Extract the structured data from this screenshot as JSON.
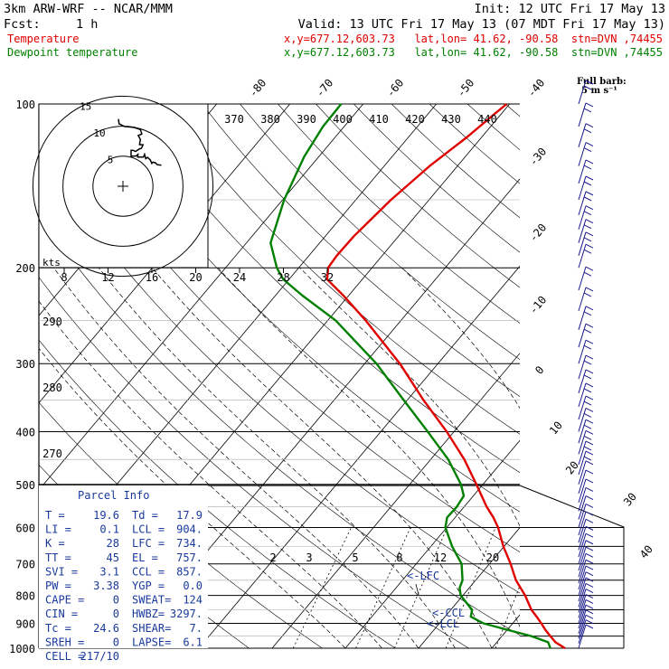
{
  "header": {
    "title": "3km ARW-WRF -- NCAR/MMM",
    "init": "Init: 12 UTC Fri 17 May 13",
    "fcst_label": "Fcst:",
    "fcst_value": "1 h",
    "valid": "Valid: 13 UTC Fri 17 May 13 (07 MDT Fri 17 May 13)"
  },
  "legend": [
    {
      "name": "Temperature",
      "location": "x,y=677.12,603.73   lat,lon= 41.62, -90.58  stn=DVN ,74455",
      "color": "#e00000"
    },
    {
      "name": "Dewpoint temperature",
      "location": "x,y=677.12,603.73   lat,lon= 41.62, -90.58  stn=DVN ,74455",
      "color": "#008000"
    }
  ],
  "barb_key": {
    "line1": "Full barb:",
    "line2": "5 m s⁻¹"
  },
  "hodograph": {
    "rings": [
      5,
      10,
      15
    ],
    "ring_labels": [
      "5",
      "10",
      "15"
    ],
    "kts_label": "kts",
    "trace": [
      [
        -1.5,
        22.4
      ],
      [
        -1.3,
        20.8
      ],
      [
        0.5,
        19.9
      ],
      [
        3.6,
        19.6
      ],
      [
        5.8,
        18.9
      ],
      [
        6.3,
        17.4
      ],
      [
        5.1,
        16.9
      ],
      [
        5.8,
        15.6
      ],
      [
        5.5,
        13.9
      ],
      [
        6.7,
        13.8
      ],
      [
        6.1,
        12.6
      ],
      [
        5.6,
        12.5
      ],
      [
        4.2,
        11.6
      ],
      [
        3.3,
        12.0
      ],
      [
        2.7,
        12.0
      ],
      [
        2.7,
        10.0
      ],
      [
        4.4,
        10.1
      ],
      [
        5.0,
        10.6
      ],
      [
        4.9,
        9.7
      ],
      [
        6.8,
        9.7
      ],
      [
        7.2,
        10.6
      ],
      [
        7.6,
        9.2
      ],
      [
        8.2,
        9.6
      ],
      [
        9.1,
        8.8
      ],
      [
        9.6,
        7.6
      ],
      [
        10.0,
        8.0
      ],
      [
        10.8,
        7.8
      ],
      [
        11.4,
        7.2
      ],
      [
        12.8,
        7.0
      ]
    ]
  },
  "parcel_info": {
    "title": "Parcel Info",
    "rows": [
      [
        "T  =",
        "19.6",
        "Td =",
        "17.9"
      ],
      [
        "LI =",
        "0.1",
        "LCL =",
        "904."
      ],
      [
        "K  =",
        "28",
        "LFC =",
        "734."
      ],
      [
        "TT =",
        "45",
        "EL  =",
        "757."
      ],
      [
        "SVI =",
        "3.1",
        "CCL =",
        "857."
      ],
      [
        "PW =",
        "3.38",
        "YGP =",
        "0.0"
      ],
      [
        "CAPE =",
        "0",
        "SWEAT=",
        "124"
      ],
      [
        "CIN =",
        "0",
        "HWBZ=",
        "3297."
      ],
      [
        "Tc =",
        "24.6",
        "SHEAR=",
        "7."
      ],
      [
        "SREH =",
        "0",
        "LAPSE=",
        "6.1"
      ],
      [
        "CELL =",
        "217/10",
        "",
        ""
      ]
    ]
  },
  "levels_markers": {
    "lfc": "<-LFC",
    "ccl": "<-CCL",
    "lcl": "<-LCL"
  },
  "chart_data": {
    "type": "skew-t log-p",
    "yaxis": {
      "label": "",
      "ticks": [
        100,
        200,
        300,
        400,
        500,
        600,
        700,
        800,
        900,
        1000
      ],
      "range": [
        1000,
        100
      ],
      "scale": "log"
    },
    "isotherm_labels_top": [
      -80,
      -70,
      -60,
      -50,
      -40
    ],
    "isotherm_labels_side": [
      -30,
      -20,
      -10,
      0,
      10,
      20,
      30,
      40
    ],
    "isentrope_labels_top": [
      370,
      380,
      390,
      400,
      410,
      420,
      430,
      440
    ],
    "isentrope_labels_left": [
      290,
      280,
      270
    ],
    "hodo_speed_axis": [
      8,
      12,
      16,
      20,
      24,
      28,
      32
    ],
    "mixing_ratio_labels": [
      2,
      3,
      5,
      8,
      12,
      20
    ],
    "series": [
      {
        "name": "Temperature",
        "color": "#e00000",
        "points": [
          [
            1000,
            20.0
          ],
          [
            975,
            18.0
          ],
          [
            950,
            16.6
          ],
          [
            925,
            15.2
          ],
          [
            900,
            13.9
          ],
          [
            875,
            12.5
          ],
          [
            850,
            11.0
          ],
          [
            800,
            8.5
          ],
          [
            750,
            5.5
          ],
          [
            700,
            2.9
          ],
          [
            650,
            -0.1
          ],
          [
            600,
            -3.0
          ],
          [
            575,
            -4.8
          ],
          [
            550,
            -6.9
          ],
          [
            500,
            -10.9
          ],
          [
            450,
            -15.4
          ],
          [
            400,
            -21.0
          ],
          [
            350,
            -27.8
          ],
          [
            300,
            -35.2
          ],
          [
            250,
            -44.8
          ],
          [
            225,
            -50.7
          ],
          [
            210,
            -54.8
          ],
          [
            200,
            -56.0
          ],
          [
            190,
            -56.2
          ],
          [
            175,
            -56.1
          ],
          [
            150,
            -55.2
          ],
          [
            130,
            -53.8
          ],
          [
            115,
            -52.0
          ],
          [
            105,
            -51.0
          ],
          [
            100,
            -50.4
          ]
        ]
      },
      {
        "name": "Dewpoint temperature",
        "color": "#008000",
        "points": [
          [
            1000,
            18.0
          ],
          [
            975,
            17.0
          ],
          [
            950,
            14.0
          ],
          [
            925,
            10.0
          ],
          [
            900,
            6.0
          ],
          [
            875,
            3.5
          ],
          [
            850,
            2.9
          ],
          [
            800,
            -0.3
          ],
          [
            775,
            -1.3
          ],
          [
            750,
            -1.8
          ],
          [
            700,
            -3.8
          ],
          [
            650,
            -7.1
          ],
          [
            600,
            -10.2
          ],
          [
            575,
            -11.1
          ],
          [
            550,
            -11.0
          ],
          [
            525,
            -11.3
          ],
          [
            500,
            -13.0
          ],
          [
            450,
            -17.6
          ],
          [
            400,
            -23.6
          ],
          [
            350,
            -30.5
          ],
          [
            300,
            -38.4
          ],
          [
            250,
            -48.9
          ],
          [
            225,
            -56.3
          ],
          [
            210,
            -60.8
          ],
          [
            200,
            -63.0
          ],
          [
            180,
            -66.7
          ],
          [
            150,
            -69.8
          ],
          [
            125,
            -72.0
          ],
          [
            110,
            -72.9
          ],
          [
            100,
            -73.0
          ]
        ]
      }
    ],
    "wind_barbs": {
      "pressures": [
        1000,
        980,
        960,
        940,
        920,
        900,
        880,
        860,
        840,
        820,
        800,
        780,
        760,
        740,
        720,
        700,
        680,
        660,
        640,
        620,
        600,
        580,
        560,
        540,
        520,
        500,
        480,
        460,
        440,
        420,
        400,
        380,
        360,
        340,
        320,
        300,
        280,
        260,
        240,
        220,
        200,
        190,
        180,
        170,
        160,
        150,
        140,
        130,
        120,
        110,
        100
      ],
      "unit": "m s-1"
    }
  }
}
